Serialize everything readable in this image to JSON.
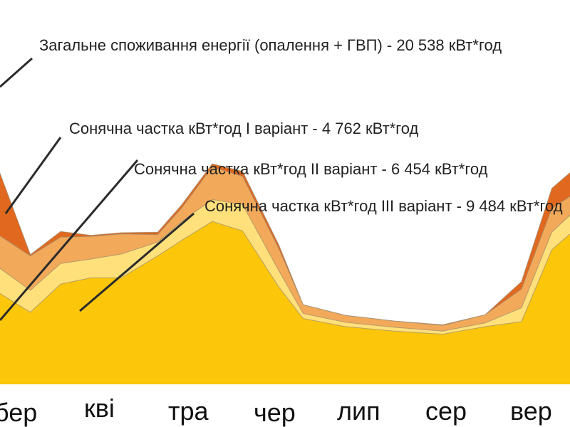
{
  "chart_data": {
    "type": "area",
    "title": "",
    "xlabel": "",
    "ylabel": "",
    "categories": [
      "бер",
      "кві",
      "тра",
      "чер",
      "лип",
      "сер",
      "вер"
    ],
    "series": [
      {
        "name": "Загальне споживання енергії (опалення + ГВП) - 20 538 кВт*год",
        "color": "#e0691f",
        "values": [
          1.0,
          0.02,
          0.09,
          0.02,
          0.02,
          0.04,
          0.05,
          0.05,
          0.08,
          0.06,
          0.0,
          -0.02,
          0.0,
          0.01,
          0.0,
          0.12,
          0.32,
          0.38
        ]
      },
      {
        "name": "Сонячна частка кВт*год I варіант - 4 762 кВт*год",
        "color": "#f2a95a",
        "values": [
          0.52,
          0.55,
          0.42,
          0.36,
          0.32,
          0.12,
          0.22,
          0.52,
          0.45,
          0.35,
          0.14,
          0.11,
          0.1,
          0.09,
          0.13,
          0.3,
          0.38,
          0.3
        ]
      },
      {
        "name": "Сонячна частка кВт*год II варіант - 6 454 кВт*год",
        "color": "#ffe07a",
        "values": [
          0.4,
          0.35,
          0.33,
          0.3,
          0.38,
          0.22,
          0.3,
          0.35,
          0.42,
          0.26,
          0.08,
          0.07,
          0.06,
          0.05,
          0.06,
          0.22,
          0.28,
          0.3
        ]
      },
      {
        "name": "Сонячна частка кВт*год III варіант - 9 484 кВт*год",
        "color": "#fcc60a",
        "values": [
          1.45,
          1.15,
          1.6,
          1.7,
          1.7,
          2.05,
          2.3,
          2.6,
          2.45,
          1.55,
          1.05,
          0.92,
          0.85,
          0.8,
          0.92,
          1.0,
          2.15,
          2.4
        ]
      }
    ],
    "x": [
      0,
      0.5,
      1,
      1.5,
      2,
      2.6,
      3,
      3.5,
      4,
      4.6,
      5,
      5.7,
      6.5,
      7.3,
      8,
      8.6,
      9.1,
      9.4
    ],
    "ylim": [
      0,
      5
    ],
    "legend": "callouts-top-right",
    "grid": false
  }
}
